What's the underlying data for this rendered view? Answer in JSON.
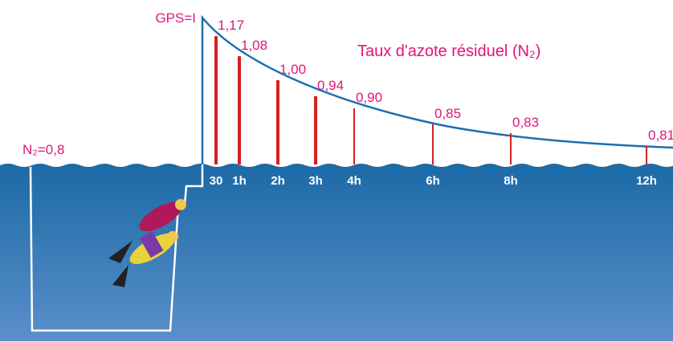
{
  "title": "Taux d'azote résiduel (N₂)",
  "gps_label": "GPS=I",
  "start_label": "N₂=0,8",
  "points": [
    {
      "time": "30",
      "label": "1,17"
    },
    {
      "time": "1h",
      "label": "1,08"
    },
    {
      "time": "2h",
      "label": "1,00"
    },
    {
      "time": "3h",
      "label": "0,94"
    },
    {
      "time": "4h",
      "label": "0,90"
    },
    {
      "time": "6h",
      "label": "0,85"
    },
    {
      "time": "8h",
      "label": "0,83"
    },
    {
      "time": "12h",
      "label": "0,81"
    }
  ]
}
